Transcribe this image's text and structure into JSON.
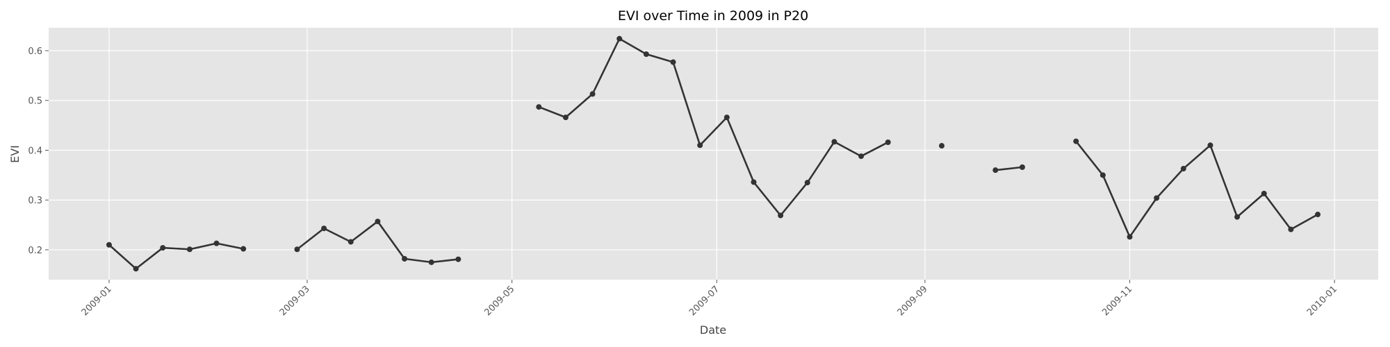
{
  "chart_data": {
    "type": "line",
    "title": "EVI over Time in 2009 in P20",
    "xlabel": "Date",
    "ylabel": "EVI",
    "color": "#333333",
    "x": [
      "2009-01-01",
      "2009-01-09",
      "2009-01-17",
      "2009-01-25",
      "2009-02-02",
      "2009-02-10",
      "2009-02-18",
      "2009-02-26",
      "2009-03-06",
      "2009-03-14",
      "2009-03-22",
      "2009-03-30",
      "2009-04-07",
      "2009-04-15",
      "2009-04-23",
      "2009-05-01",
      "2009-05-09",
      "2009-05-17",
      "2009-05-25",
      "2009-06-02",
      "2009-06-10",
      "2009-06-18",
      "2009-06-26",
      "2009-07-04",
      "2009-07-12",
      "2009-07-20",
      "2009-07-28",
      "2009-08-05",
      "2009-08-13",
      "2009-08-21",
      "2009-08-29",
      "2009-09-06",
      "2009-09-14",
      "2009-09-22",
      "2009-09-30",
      "2009-10-08",
      "2009-10-16",
      "2009-10-24",
      "2009-11-01",
      "2009-11-09",
      "2009-11-17",
      "2009-11-25",
      "2009-12-03",
      "2009-12-11",
      "2009-12-19",
      "2009-12-27"
    ],
    "values": [
      0.21,
      0.162,
      0.204,
      0.201,
      0.213,
      0.202,
      null,
      0.201,
      0.243,
      0.216,
      0.257,
      0.182,
      0.175,
      0.181,
      null,
      null,
      0.487,
      0.466,
      0.513,
      0.624,
      0.593,
      0.577,
      0.41,
      0.466,
      0.336,
      0.269,
      0.335,
      0.417,
      0.388,
      0.416,
      null,
      0.409,
      null,
      0.36,
      0.366,
      null,
      0.418,
      0.35,
      0.226,
      0.304,
      0.363,
      0.41,
      0.266,
      0.313,
      0.241,
      0.271
    ],
    "xlim": [
      "2008-12-14",
      "2010-01-14"
    ],
    "xticks": [
      {
        "value": "2009-01-01",
        "label": "2009-01"
      },
      {
        "value": "2009-03-01",
        "label": "2009-03"
      },
      {
        "value": "2009-05-01",
        "label": "2009-05"
      },
      {
        "value": "2009-07-01",
        "label": "2009-07"
      },
      {
        "value": "2009-09-01",
        "label": "2009-09"
      },
      {
        "value": "2009-11-01",
        "label": "2009-11"
      },
      {
        "value": "2010-01-01",
        "label": "2010-01"
      }
    ],
    "ylim": [
      0.14,
      0.646
    ],
    "yticks": [
      0.2,
      0.3,
      0.4,
      0.5,
      0.6
    ],
    "grid": true
  }
}
